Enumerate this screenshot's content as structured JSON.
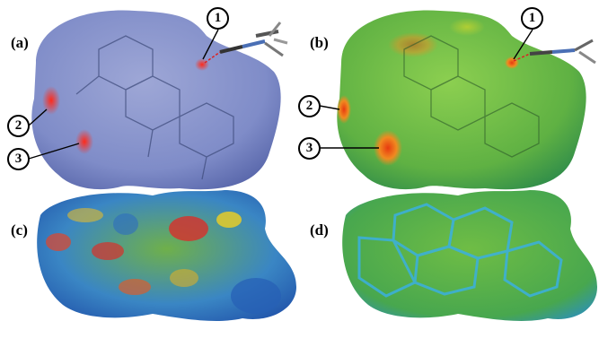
{
  "panels": [
    {
      "label": "(a)",
      "description_colors": {
        "surface": "#8e9ad0",
        "spot": "#e53a36"
      }
    },
    {
      "label": "(b)",
      "description_colors": {
        "surface": "#6fbf45",
        "spot": "#e04a1a"
      }
    },
    {
      "label": "(c)",
      "description_colors": {
        "surface": "#3f86c9",
        "spot": "#d8302a"
      }
    },
    {
      "label": "(d)",
      "description_colors": {
        "surface": "#57ad4e",
        "edge": "#38a8d8"
      }
    }
  ],
  "markers": {
    "a": [
      "1",
      "2",
      "3"
    ],
    "b": [
      "1",
      "2",
      "3"
    ]
  }
}
